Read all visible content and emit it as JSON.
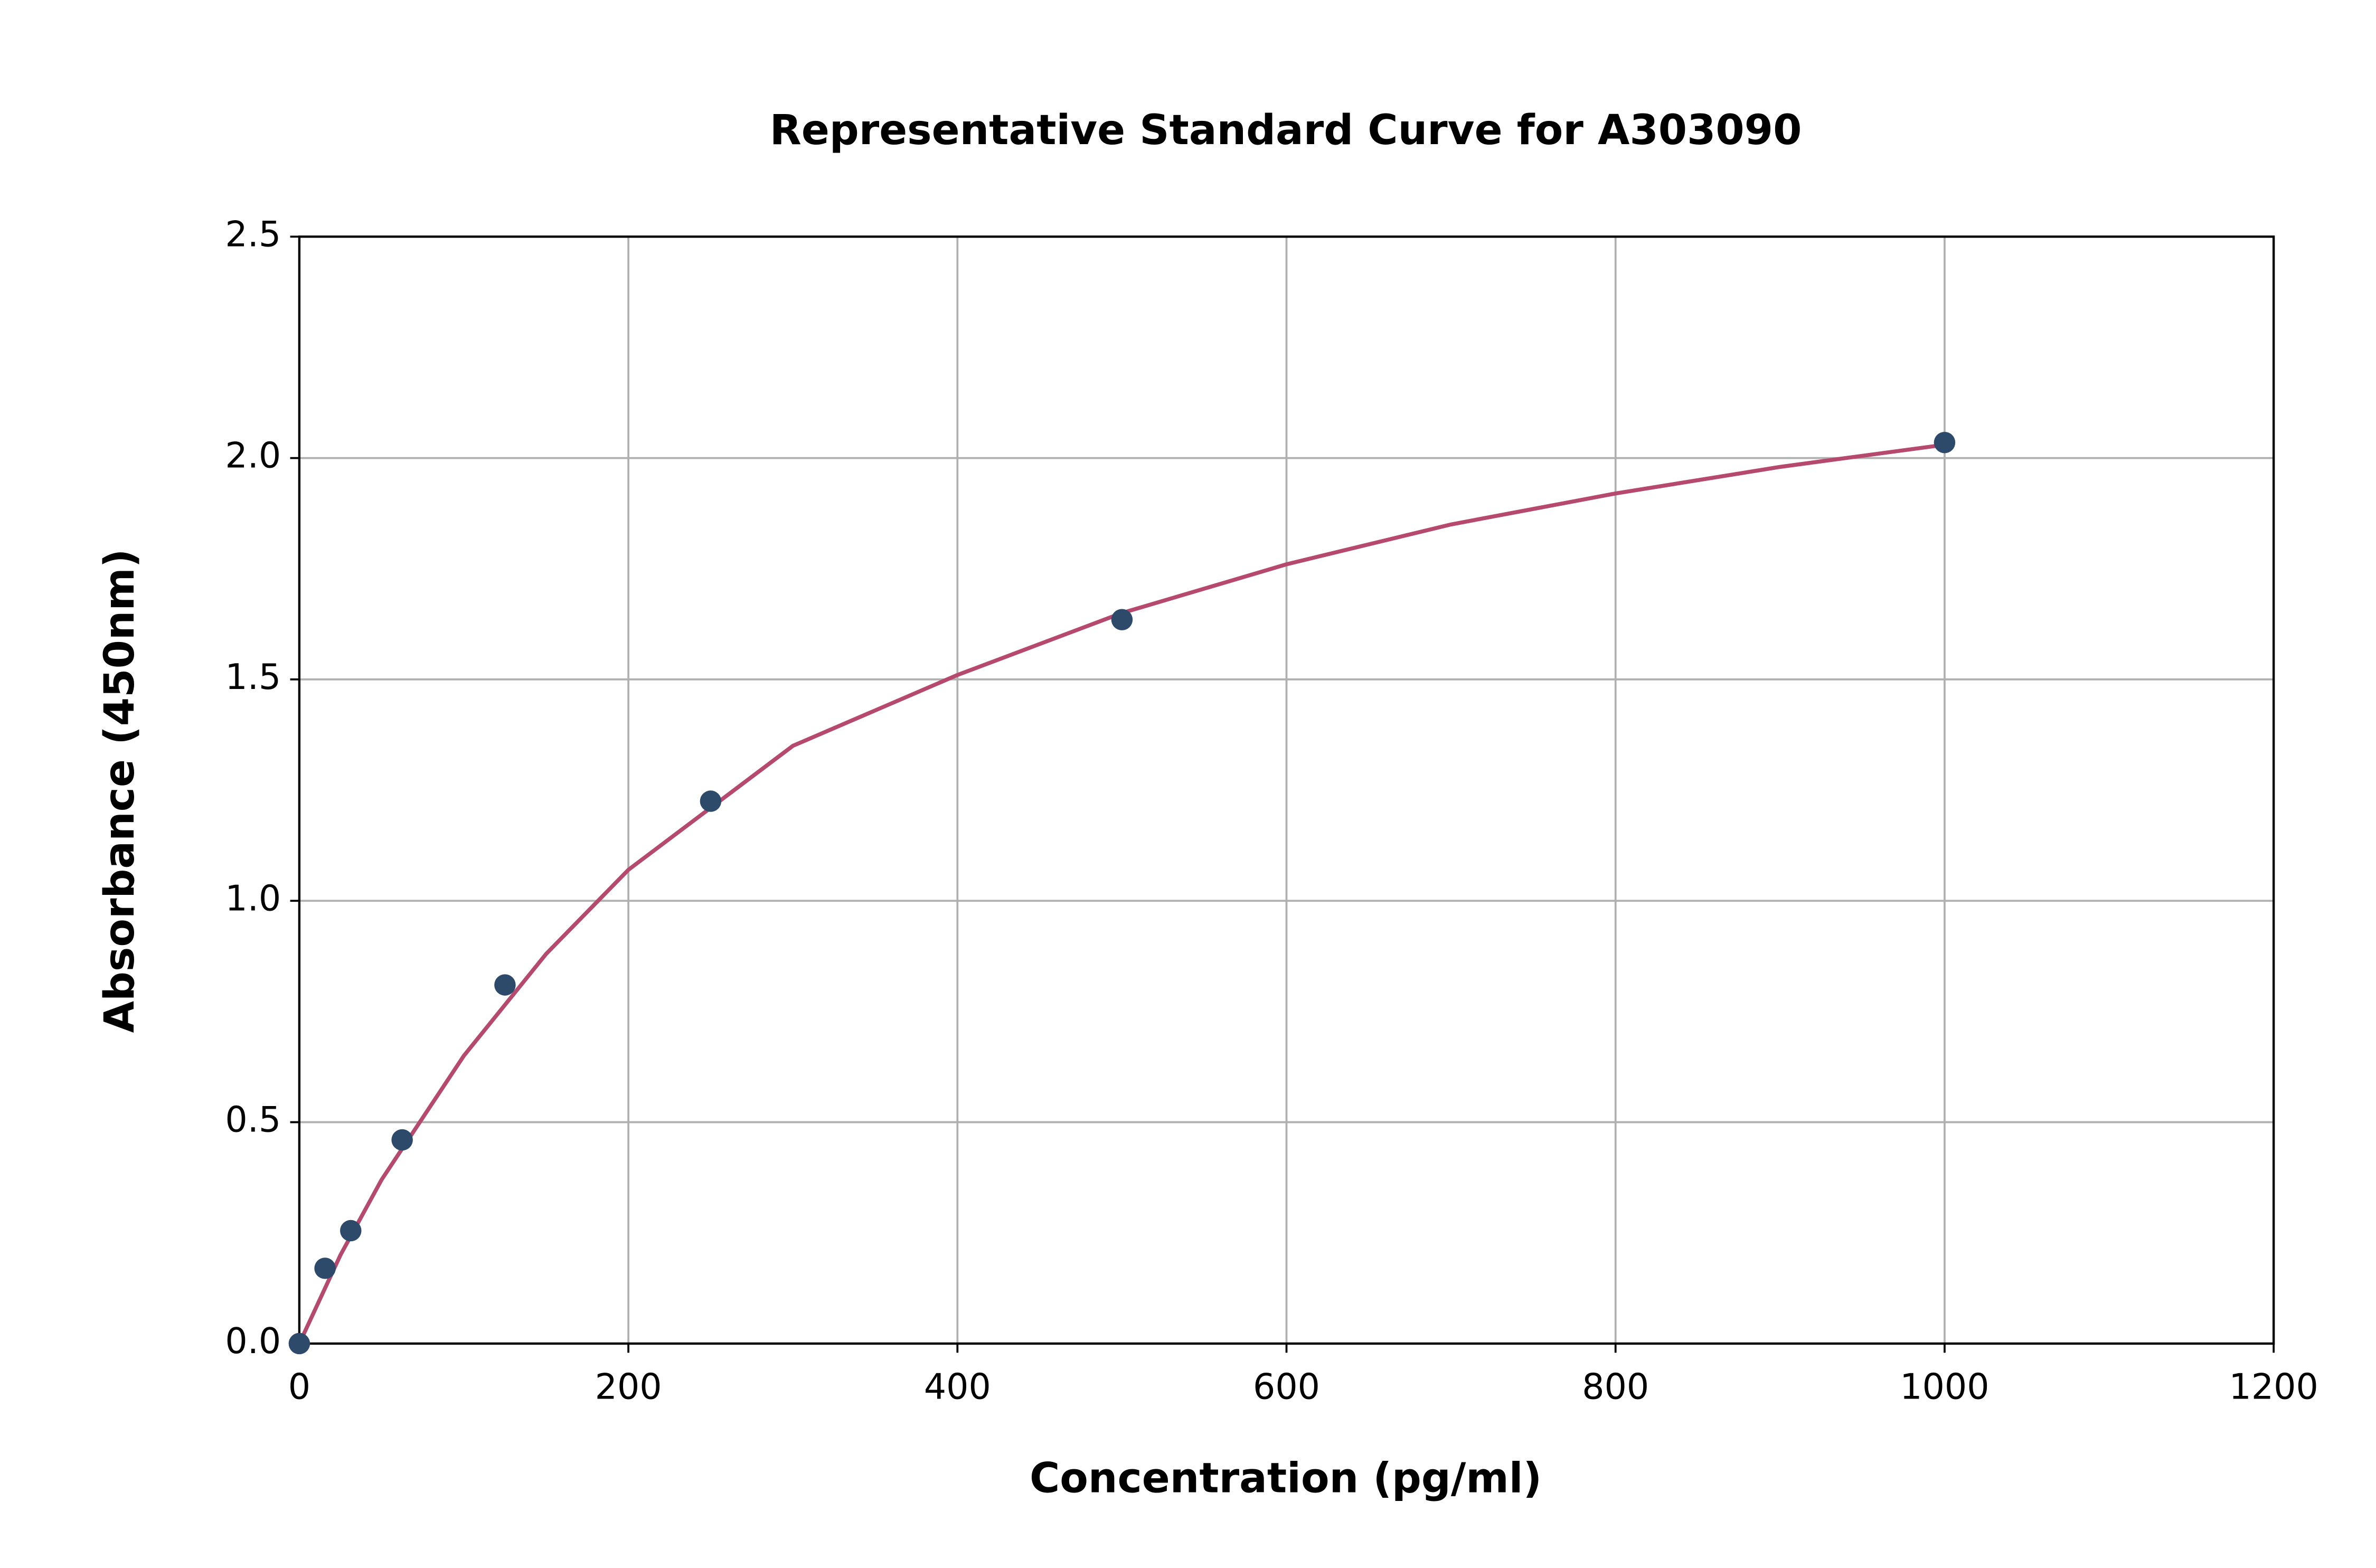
{
  "chart_data": {
    "type": "scatter",
    "title": "Representative Standard Curve for A303090",
    "x_label": "Concentration (pg/ml)",
    "y_label": "Absorbance (450nm)",
    "xlim": [
      0,
      1200
    ],
    "xticks": [
      0,
      200,
      400,
      600,
      800,
      1000,
      1200
    ],
    "ylim": [
      0,
      2.5
    ],
    "yticks": [
      {
        "value": 0,
        "label": "0.0"
      },
      0.5,
      {
        "value": 1,
        "label": "1.0"
      },
      1.5,
      {
        "value": 2,
        "label": "2.0"
      },
      2.5
    ],
    "grid": true,
    "series": [
      {
        "type": "scatter",
        "color": "#2e4a6b",
        "x": [
          0,
          15.625,
          31.25,
          62.5,
          125,
          250,
          500,
          1000
        ],
        "values": [
          0,
          0.17,
          0.255,
          0.46,
          0.81,
          1.225,
          1.635,
          2.035
        ]
      },
      {
        "type": "line",
        "color": "#b5496e",
        "x": [
          0,
          25,
          50,
          100,
          150,
          200,
          300,
          400,
          500,
          600,
          700,
          800,
          900,
          1000
        ],
        "values": [
          0,
          0.2,
          0.37,
          0.65,
          0.88,
          1.07,
          1.35,
          1.51,
          1.65,
          1.76,
          1.85,
          1.92,
          1.98,
          2.03
        ]
      }
    ]
  }
}
